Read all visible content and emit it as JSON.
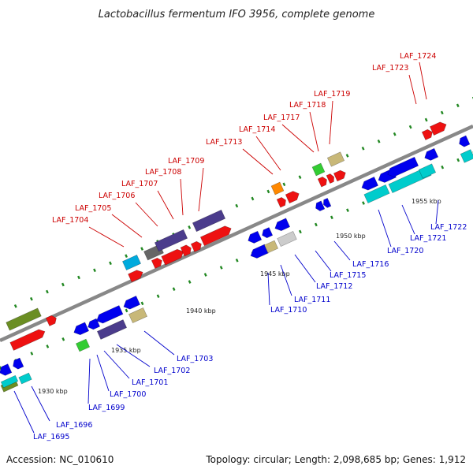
{
  "title": "Lactobacillus fermentum IFO 3956, complete genome",
  "footer": {
    "accession": "Accession: NC_010610",
    "summary": "Topology: circular; Length: 2,098,685 bp; Genes: 1,912"
  },
  "ticks": [
    "1930 kbp",
    "1935 kbp",
    "1940 kbp",
    "1945 kbp",
    "1950 kbp",
    "1955 kbp"
  ],
  "colors": {
    "top_labels": "#cc0000",
    "bottom_labels": "#0000cc",
    "axis": "#888888",
    "marker": "#228822"
  },
  "top_labels": [
    "LAF_1704",
    "LAF_1705",
    "LAF_1706",
    "LAF_1707",
    "LAF_1708",
    "LAF_1709",
    "LAF_1713",
    "LAF_1714",
    "LAF_1717",
    "LAF_1718",
    "LAF_1719",
    "LAF_1723",
    "LAF_1724"
  ],
  "bottom_labels": [
    "LAF_1695",
    "LAF_1696",
    "LAF_1699",
    "LAF_1700",
    "LAF_1701",
    "LAF_1702",
    "LAF_1703",
    "LAF_1710",
    "LAF_1711",
    "LAF_1712",
    "LAF_1715",
    "LAF_1716",
    "LAF_1720",
    "LAF_1721",
    "LAF_1722"
  ]
}
